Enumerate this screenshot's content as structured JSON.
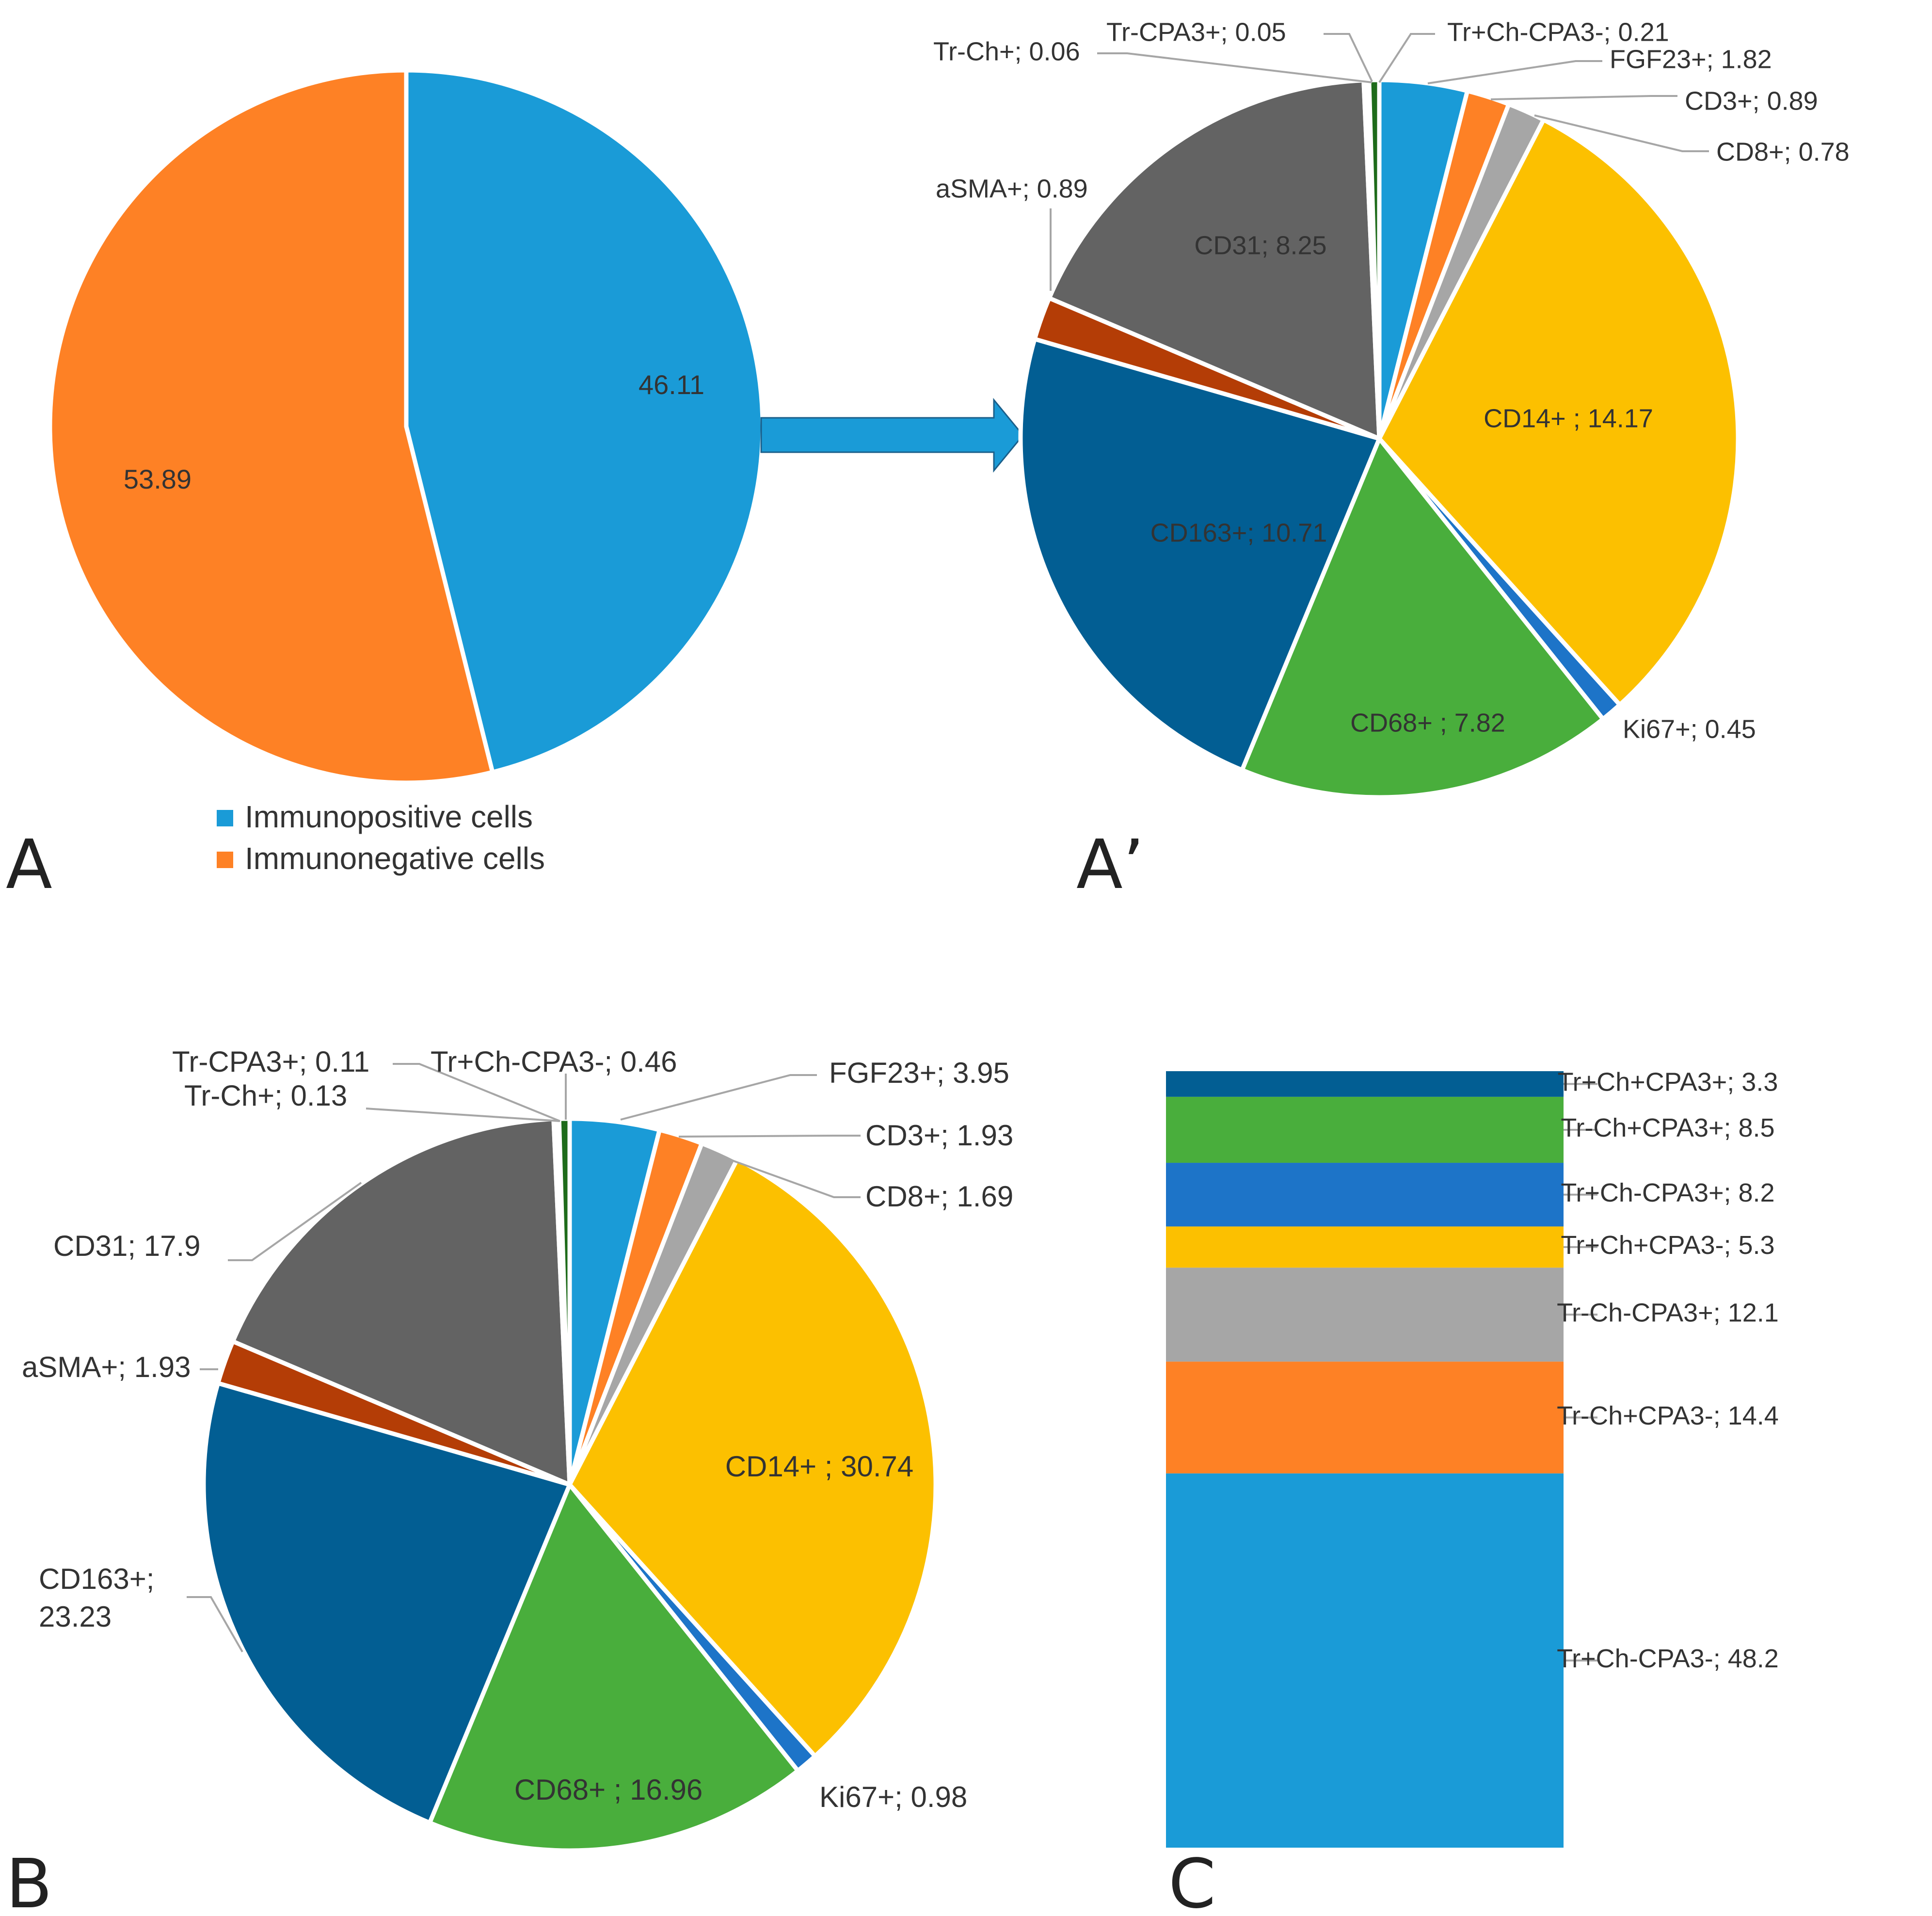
{
  "panels": {
    "A": "A",
    "A_prime": "A’",
    "B": "B",
    "C": "C"
  },
  "colors": {
    "arrow": "#1a9bd7",
    "leader": "#a6a6a6",
    "text": "#333333"
  },
  "chart_data": [
    {
      "id": "A",
      "type": "pie",
      "title": "",
      "slices": [
        {
          "label": "Immunopositive cells",
          "value": 46.11,
          "text": "46.11",
          "color": "#1a9bd7"
        },
        {
          "label": "Immunonegative cells",
          "value": 53.89,
          "text": "53.89",
          "color": "#fe8125"
        }
      ],
      "legend": {
        "placement": "bottom",
        "entries": [
          {
            "label": "Immunopositive cells",
            "color": "#1a9bd7"
          },
          {
            "label": "Immunonegative cells",
            "color": "#fe8125"
          }
        ]
      }
    },
    {
      "id": "A_prime",
      "type": "pie",
      "title": "",
      "slices": [
        {
          "label": "FGF23+",
          "value": 1.82,
          "text": "FGF23+; 1.82",
          "color": "#1a9bd7"
        },
        {
          "label": "CD3+",
          "value": 0.89,
          "text": "CD3+; 0.89",
          "color": "#fe8125"
        },
        {
          "label": "CD8+",
          "value": 0.78,
          "text": "CD8+; 0.78",
          "color": "#a6a6a6"
        },
        {
          "label": "CD14+",
          "value": 14.17,
          "text": "CD14+ ; 14.17",
          "color": "#fcc000"
        },
        {
          "label": "Ki67+",
          "value": 0.45,
          "text": "Ki67+; 0.45",
          "color": "#1d74c8"
        },
        {
          "label": "CD68+",
          "value": 7.82,
          "text": "CD68+ ; 7.82",
          "color": "#49ae3c"
        },
        {
          "label": "CD163+",
          "value": 10.71,
          "text": "CD163+; 10.71",
          "color": "#025e93"
        },
        {
          "label": "aSMA+",
          "value": 0.89,
          "text": "aSMA+; 0.89",
          "color": "#b43d06"
        },
        {
          "label": "CD31",
          "value": 8.25,
          "text": "CD31; 8.25",
          "color": "#636363"
        },
        {
          "label": "Tr-Ch+",
          "value": 0.06,
          "text": "Tr-Ch+; 0.06",
          "color": "#91b1d9"
        },
        {
          "label": "Tr-CPA3+",
          "value": 0.05,
          "text": "Tr-CPA3+; 0.05",
          "color": "#c9c9c9"
        },
        {
          "label": "Tr+Ch-CPA3-",
          "value": 0.21,
          "text": "Tr+Ch-CPA3-; 0.21",
          "color": "#1e6b1a"
        }
      ]
    },
    {
      "id": "B",
      "type": "pie",
      "title": "",
      "slices": [
        {
          "label": "FGF23+",
          "value": 3.95,
          "text": "FGF23+; 3.95",
          "color": "#1a9bd7"
        },
        {
          "label": "CD3+",
          "value": 1.93,
          "text": "CD3+; 1.93",
          "color": "#fe8125"
        },
        {
          "label": "CD8+",
          "value": 1.69,
          "text": "CD8+; 1.69",
          "color": "#a6a6a6"
        },
        {
          "label": "CD14+",
          "value": 30.74,
          "text": "CD14+ ; 30.74",
          "color": "#fcc000"
        },
        {
          "label": "Ki67+",
          "value": 0.98,
          "text": "Ki67+; 0.98",
          "color": "#1d74c8"
        },
        {
          "label": "CD68+",
          "value": 16.96,
          "text": "CD68+ ; 16.96",
          "color": "#49ae3c"
        },
        {
          "label": "CD163+",
          "value": 23.23,
          "text": "CD163+;",
          "text2": "23.23",
          "color": "#025e93"
        },
        {
          "label": "aSMA+",
          "value": 1.93,
          "text": "aSMA+; 1.93",
          "color": "#b43d06"
        },
        {
          "label": "CD31",
          "value": 17.9,
          "text": "CD31; 17.9",
          "color": "#636363"
        },
        {
          "label": "Tr-Ch+",
          "value": 0.13,
          "text": "Tr-Ch+; 0.13",
          "color": "#91b1d9"
        },
        {
          "label": "Tr-CPA3+",
          "value": 0.11,
          "text": "Tr-CPA3+; 0.11",
          "color": "#c9c9c9"
        },
        {
          "label": "Tr+Ch-CPA3-",
          "value": 0.46,
          "text": "Tr+Ch-CPA3-; 0.46",
          "color": "#1e6b1a"
        }
      ]
    },
    {
      "id": "C",
      "type": "bar",
      "stacked": true,
      "orientation": "vertical",
      "segments": [
        {
          "label": "Tr+Ch-CPA3-",
          "value": 48.2,
          "text": "Tr+Ch-CPA3-; 48.2",
          "color": "#1a9bd7"
        },
        {
          "label": "Tr-Ch+CPA3-",
          "value": 14.4,
          "text": "Tr-Ch+CPA3-; 14.4",
          "color": "#fe8125"
        },
        {
          "label": "Tr-Ch-CPA3+",
          "value": 12.1,
          "text": "Tr-Ch-CPA3+; 12.1",
          "color": "#a6a6a6"
        },
        {
          "label": "Tr+Ch+CPA3-",
          "value": 5.3,
          "text": "Tr+Ch+CPA3-; 5.3",
          "color": "#fcc000"
        },
        {
          "label": "Tr+Ch-CPA3+",
          "value": 8.2,
          "text": "Tr+Ch-CPA3+; 8.2",
          "color": "#1d74c8"
        },
        {
          "label": "Tr-Ch+CPA3+",
          "value": 8.5,
          "text": "Tr-Ch+CPA3+; 8.5",
          "color": "#49ae3c"
        },
        {
          "label": "Tr+Ch+CPA3+",
          "value": 3.3,
          "text": "Tr+Ch+CPA3+; 3.3",
          "color": "#025e93"
        }
      ]
    }
  ]
}
